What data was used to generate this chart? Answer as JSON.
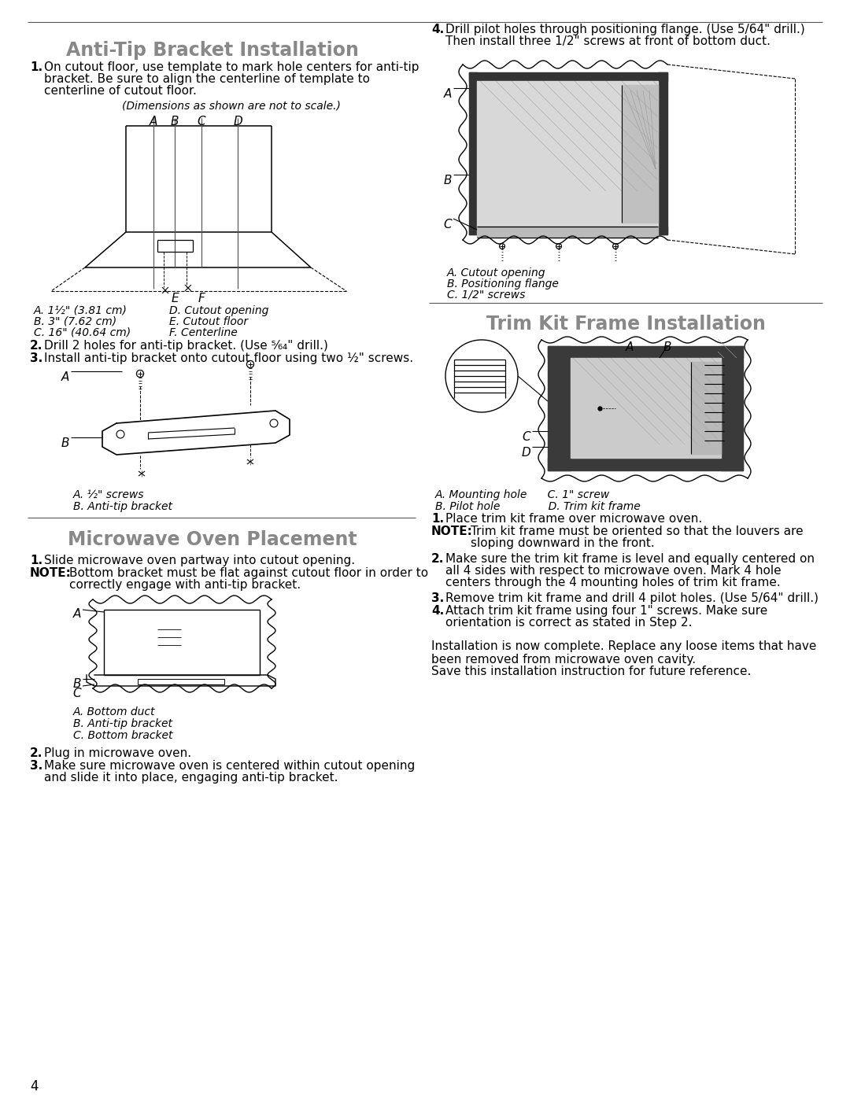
{
  "page_bg": "#ffffff",
  "title_anti_tip": "Anti-Tip Bracket Installation",
  "title_microwave": "Microwave Oven Placement",
  "title_trim_kit": "Trim Kit Frame Installation",
  "title_color": "#888888",
  "body_color": "#000000",
  "page_number": "4",
  "dimensions_note": "(Dimensions as shown are not to scale.)",
  "fig1_labels_top": [
    "A",
    "B",
    "C",
    "D"
  ],
  "fig1_labels_bottom": [
    "E",
    "F"
  ],
  "fig1_legend_left": [
    "A. 1½\" (3.81 cm)",
    "B. 3\" (7.62 cm)",
    "C. 16\" (40.64 cm)"
  ],
  "fig1_legend_right": [
    "D. Cutout opening",
    "E. Cutout floor",
    "F. Centerline"
  ],
  "step2_text": "Drill 2 holes for anti-tip bracket. (Use ⁵⁄₆₄\" drill.)",
  "step3_text": "Install anti-tip bracket onto cutout floor using two ½\" screws.",
  "fig2_labels": [
    "A. ½\" screws",
    "B. Anti-tip bracket"
  ],
  "fig3_labels": [
    "A. Bottom duct",
    "B. Anti-tip bracket",
    "C. Bottom bracket"
  ],
  "section3_step4_line1": "Drill pilot holes through positioning flange. (Use 5/64\" drill.)",
  "section3_step4_line2": "Then install three 1/2\" screws at front of bottom duct.",
  "fig4_labels": [
    "A. Cutout opening",
    "B. Positioning flange",
    "C. 1/2\" screws"
  ],
  "fig5_legend": [
    "A. Mounting hole      C. 1\" screw",
    "B. Pilot hole              D. Trim kit frame"
  ],
  "final_text1": "Installation is now complete. Replace any loose items that have been removed from microwave oven cavity.",
  "final_text2": "Save this installation instruction for future reference."
}
